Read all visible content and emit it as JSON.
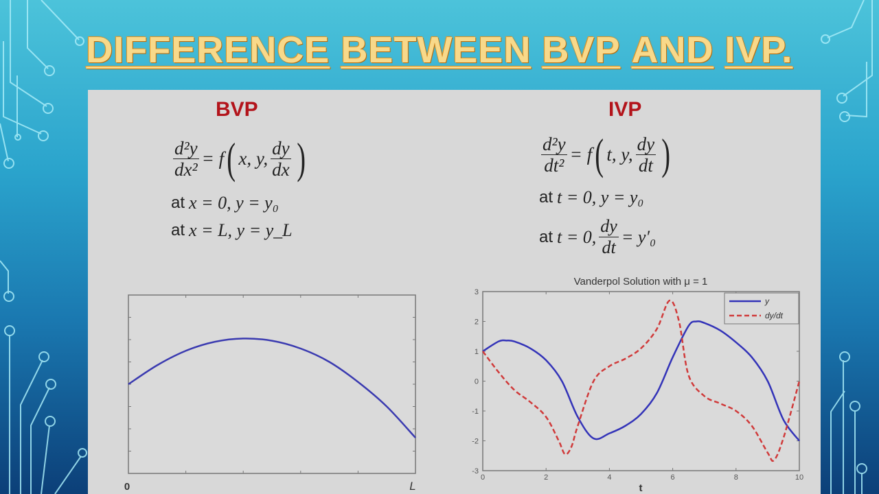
{
  "slide": {
    "title_words": [
      "DIFFERENCE",
      "BETWEEN",
      "BVP",
      "AND",
      "IVP."
    ]
  },
  "bvp": {
    "heading": "BVP",
    "equation": {
      "lhs_num": "d²y",
      "lhs_den": "dx²",
      "equals": "= f",
      "args": "x, y,",
      "frac_num": "dy",
      "frac_den": "dx"
    },
    "conditions": [
      {
        "at": "at",
        "expr": "x = 0, y = y₀"
      },
      {
        "at": "at",
        "expr": "x = L, y = y_L"
      }
    ]
  },
  "ivp": {
    "heading": "IVP",
    "equation": {
      "lhs_num": "d²y",
      "lhs_den": "dt²",
      "equals": "= f",
      "args": "t, y,",
      "frac_num": "dy",
      "frac_den": "dt"
    },
    "conditions": [
      {
        "at": "at",
        "expr": "t = 0, y = y₀"
      },
      {
        "at": "at",
        "expr": "t = 0,",
        "frac_num": "dy",
        "frac_den": "dt",
        "rhs": "= y′₀"
      }
    ]
  },
  "chart_data": [
    {
      "type": "line",
      "title": "",
      "xlabel": "",
      "ylabel": "",
      "x_tick_labels": [
        "0",
        "L"
      ],
      "xlim": [
        0,
        1
      ],
      "ylim": [
        0,
        8
      ],
      "grid": false,
      "series": [
        {
          "color": "#3a3ab0",
          "style": "solid",
          "x": [
            0,
            0.1,
            0.2,
            0.3,
            0.4,
            0.5,
            0.6,
            0.7,
            0.8,
            0.9,
            1.0
          ],
          "y": [
            4.0,
            4.85,
            5.5,
            5.9,
            6.05,
            5.95,
            5.6,
            5.0,
            4.1,
            3.0,
            1.6
          ]
        }
      ]
    },
    {
      "type": "line",
      "title": "Vanderpol Solution with μ = 1",
      "xlabel": "t",
      "ylabel": "",
      "xlim": [
        0,
        10
      ],
      "ylim": [
        -3,
        3
      ],
      "x_ticks": [
        "0",
        "2",
        "4",
        "6",
        "8",
        "10"
      ],
      "y_ticks": [
        "-3",
        "-2",
        "-1",
        "0",
        "1",
        "2",
        "3"
      ],
      "grid": false,
      "legend": "top-right",
      "series": [
        {
          "name": "y",
          "color": "#3333b8",
          "style": "solid",
          "x": [
            0,
            0.5,
            0.75,
            1,
            1.5,
            2,
            2.5,
            3,
            3.5,
            4,
            4.5,
            5,
            5.5,
            6,
            6.5,
            6.75,
            7,
            7.5,
            8,
            8.5,
            9,
            9.5,
            10
          ],
          "y": [
            1.0,
            1.33,
            1.36,
            1.33,
            1.1,
            0.7,
            0.0,
            -1.2,
            -1.92,
            -1.75,
            -1.5,
            -1.1,
            -0.4,
            0.8,
            1.85,
            2.0,
            1.95,
            1.7,
            1.3,
            0.8,
            0.0,
            -1.3,
            -2.0
          ]
        },
        {
          "name": "dy/dt",
          "color": "#d03a3a",
          "style": "dashed",
          "x": [
            0,
            0.5,
            1,
            1.5,
            2,
            2.4,
            2.6,
            2.8,
            3,
            3.5,
            4,
            4.5,
            5,
            5.5,
            5.9,
            6.2,
            6.5,
            7,
            7.5,
            8,
            8.5,
            9,
            9.2,
            9.5,
            10
          ],
          "y": [
            1.0,
            0.3,
            -0.3,
            -0.7,
            -1.2,
            -2.0,
            -2.45,
            -2.2,
            -1.5,
            0.0,
            0.5,
            0.75,
            1.1,
            1.75,
            2.7,
            2.0,
            0.2,
            -0.5,
            -0.75,
            -1.0,
            -1.5,
            -2.4,
            -2.65,
            -1.9,
            0.0
          ]
        }
      ]
    }
  ]
}
